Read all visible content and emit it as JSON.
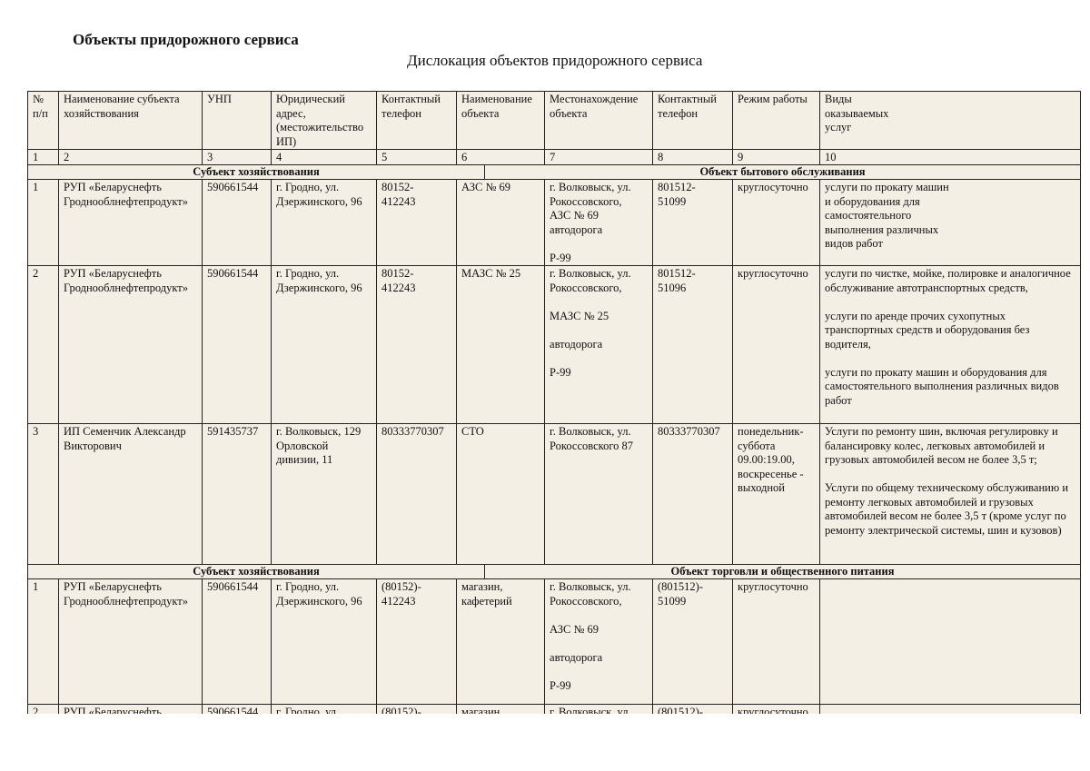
{
  "title": "Объекты придорожного сервиса",
  "subtitle": "Дислокация объектов придорожного сервиса",
  "columns": [
    "№\nп/п",
    "Наименование субъекта хозяйствования",
    "УНП",
    "Юридический адрес,\n(местожительство ИП)",
    "Контактный телефон",
    "Наименование объекта",
    "Местонахождение объекта",
    "Контактный телефон",
    "Режим работы",
    "Виды\nоказываемых\nуслуг"
  ],
  "column_numbers": [
    "1",
    "2",
    "3",
    "4",
    "5",
    "6",
    "7",
    "8",
    "9",
    "10"
  ],
  "sections": [
    {
      "left": "Субъект хозяйствования",
      "right": "Объект бытового обслуживания",
      "rows": [
        [
          "1",
          "РУП «Беларуснефть Гроднооблнефтепродукт»",
          "590661544",
          "г. Гродно, ул. Дзержинского, 96",
          "80152-\n412243",
          "АЗС № 69",
          "г. Волковыск, ул. Рокоссовского,\nАЗС № 69\nавтодорога\n\nР-99",
          "801512-\n51099",
          "круглосуточно",
          "услуги по прокату машин\nи оборудования для\nсамостоятельного\nвыполнения различных\nвидов работ"
        ],
        [
          "2",
          "РУП «Беларуснефть Гроднооблнефтепродукт»",
          "590661544",
          "г. Гродно, ул. Дзержинского, 96",
          "80152-\n412243",
          "МАЗС № 25",
          "г. Волковыск, ул. Рокоссовского,\n\nМАЗС № 25\n\nавтодорога\n\nР-99",
          "801512-\n51096",
          "круглосуточно",
          "услуги по чистке, мойке, полировке и аналогичное обслуживание автотранспортных средств,\n\nуслуги по аренде прочих сухопутных транспортных средств и оборудования без водителя,\n\nуслуги по прокату машин и оборудования для самостоятельного выполнения различных видов работ"
        ],
        [
          "3",
          "ИП Семенчик Александр Викторович",
          "591435737",
          "г. Волковыск, 129 Орловской дивизии, 11",
          "80333770307",
          "СТО",
          "г. Волковыск, ул. Рокоссовского 87",
          "80333770307",
          " понедельник-суббота 09.00:19.00, воскресенье - выходной",
          "Услуги по ремонту шин, включая регулировку и балансировку колес, легковых автомобилей и грузовых автомобилей весом не более 3,5 т;\n\nУслуги по общему техническому обслуживанию и ремонту легковых автомобилей и грузовых автомобилей весом не более 3,5 т (кроме услуг по ремонту электрической системы, шин и кузовов)"
        ]
      ]
    },
    {
      "left": "Субъект хозяйствования",
      "right": "Объект торговли и общественного питания",
      "rows": [
        [
          "1",
          "РУП «Беларуснефть Гроднооблнефтепродукт»",
          "590661544",
          "г. Гродно, ул. Дзержинского, 96",
          "(80152)-\n412243",
          "магазин, кафетерий",
          "г. Волковыск, ул. Рокоссовского,\n\nАЗС № 69\n\nавтодорога\n\nР-99",
          "(801512)-\n51099",
          "круглосуточно",
          ""
        ],
        [
          "2",
          "РУП «Беларуснефть",
          "590661544",
          "г. Гродно, ул.",
          "(80152)-",
          "магазин,",
          "г. Волковыск, ул.",
          "(801512)-",
          "круглосуточно",
          ""
        ]
      ]
    }
  ]
}
